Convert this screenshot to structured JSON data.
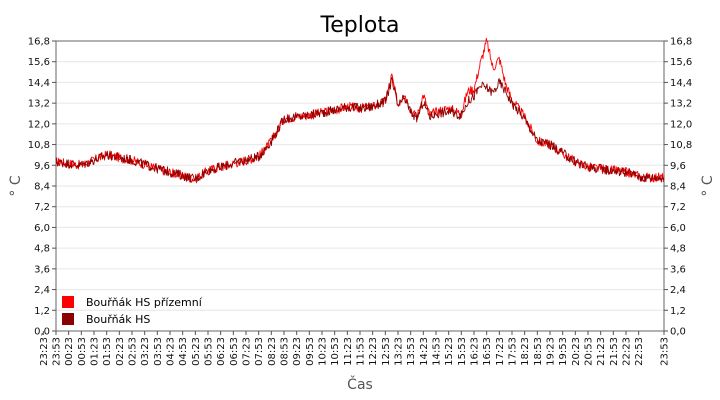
{
  "chart_data": {
    "type": "line",
    "title": "Teplota",
    "xlabel": "Čas",
    "ylabel": "° C",
    "ylim": [
      0,
      16.8
    ],
    "y_ticks": [
      "0,0",
      "1,2",
      "2,4",
      "3,6",
      "4,8",
      "6,0",
      "7,2",
      "8,4",
      "9,6",
      "10,8",
      "12,0",
      "13,2",
      "14,4",
      "15,6",
      "16,8"
    ],
    "x_ticks": [
      "23:53",
      "00:23",
      "00:53",
      "01:23",
      "01:53",
      "02:23",
      "02:53",
      "03:23",
      "03:53",
      "04:23",
      "04:53",
      "05:23",
      "05:53",
      "06:23",
      "06:53",
      "07:23",
      "07:53",
      "08:23",
      "08:53",
      "09:23",
      "09:53",
      "10:23",
      "10:53",
      "11:23",
      "11:53",
      "12:23",
      "12:53",
      "13:23",
      "13:53",
      "14:23",
      "14:53",
      "15:23",
      "15:53",
      "16:23",
      "16:53",
      "17:23",
      "17:53",
      "18:23",
      "18:53",
      "19:23",
      "19:53",
      "20:23",
      "20:53",
      "21:23",
      "21:53",
      "22:23",
      "22:53",
      "23:23",
      "23:53"
    ],
    "grid": true,
    "legend_position": "bottom-left",
    "series": [
      {
        "name": "Bouřňák HS přízemní",
        "color": "#ff0000",
        "x": [
          "23:53",
          "00:53",
          "01:53",
          "02:53",
          "03:53",
          "04:53",
          "05:23",
          "05:53",
          "06:53",
          "07:53",
          "08:23",
          "08:53",
          "09:23",
          "09:53",
          "10:53",
          "11:23",
          "11:53",
          "12:23",
          "12:53",
          "13:08",
          "13:23",
          "13:38",
          "13:53",
          "14:08",
          "14:23",
          "14:38",
          "14:53",
          "15:23",
          "15:53",
          "16:08",
          "16:23",
          "16:38",
          "16:53",
          "17:08",
          "17:23",
          "17:38",
          "17:53",
          "18:23",
          "18:53",
          "19:23",
          "19:53",
          "20:23",
          "20:53",
          "21:23",
          "21:53",
          "22:23",
          "22:53",
          "23:23",
          "23:53"
        ],
        "values": [
          9.8,
          9.6,
          10.2,
          9.9,
          9.4,
          9.0,
          8.8,
          9.3,
          9.7,
          10.1,
          11.0,
          12.3,
          12.4,
          12.5,
          12.8,
          13.0,
          12.9,
          13.0,
          13.3,
          14.8,
          13.1,
          13.8,
          12.8,
          12.4,
          13.7,
          12.5,
          12.7,
          12.9,
          12.6,
          13.9,
          14.0,
          15.5,
          16.8,
          15.2,
          15.8,
          14.3,
          13.4,
          12.4,
          11.0,
          10.8,
          10.3,
          9.8,
          9.5,
          9.4,
          9.3,
          9.2,
          9.0,
          8.8,
          8.9
        ]
      },
      {
        "name": "Bouřňák HS",
        "color": "#8b0000",
        "x": [
          "23:53",
          "00:53",
          "01:53",
          "02:53",
          "03:53",
          "04:53",
          "05:23",
          "05:53",
          "06:53",
          "07:53",
          "08:23",
          "08:53",
          "09:23",
          "09:53",
          "10:53",
          "11:23",
          "11:53",
          "12:23",
          "12:53",
          "13:08",
          "13:23",
          "13:38",
          "13:53",
          "14:08",
          "14:23",
          "14:38",
          "14:53",
          "15:23",
          "15:53",
          "16:08",
          "16:23",
          "16:38",
          "16:53",
          "17:08",
          "17:23",
          "17:38",
          "17:53",
          "18:23",
          "18:53",
          "19:23",
          "19:53",
          "20:23",
          "20:53",
          "21:23",
          "21:53",
          "22:23",
          "22:53",
          "23:23",
          "23:53"
        ],
        "values": [
          9.8,
          9.6,
          10.2,
          9.9,
          9.4,
          9.0,
          8.8,
          9.3,
          9.7,
          10.1,
          11.0,
          12.3,
          12.4,
          12.5,
          12.8,
          13.0,
          12.9,
          13.0,
          13.3,
          14.5,
          13.0,
          13.5,
          12.7,
          12.3,
          13.3,
          12.4,
          12.6,
          12.7,
          12.5,
          13.3,
          13.6,
          14.2,
          14.1,
          13.8,
          14.4,
          13.9,
          13.2,
          12.3,
          11.0,
          10.8,
          10.3,
          9.8,
          9.5,
          9.4,
          9.3,
          9.2,
          9.0,
          8.8,
          8.9
        ]
      }
    ]
  }
}
